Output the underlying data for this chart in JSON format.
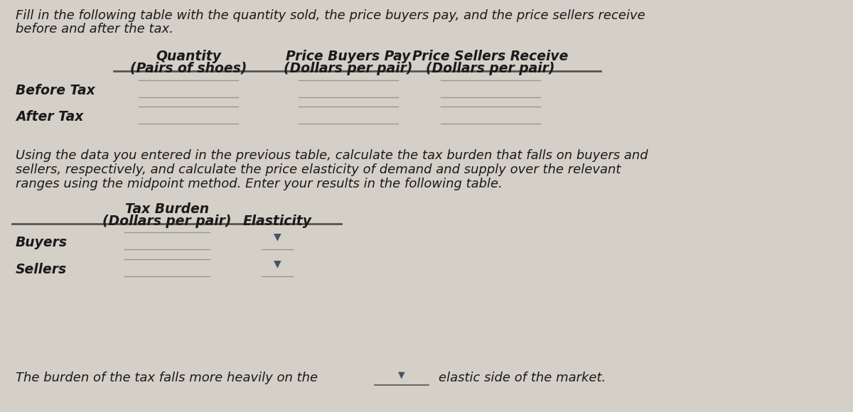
{
  "bg_color": "#d4cfc7",
  "cell_bg": "#ccc8bf",
  "title_text1": "Fill in the following table with the quantity sold, the price buyers pay, and the price sellers receive",
  "title_text2": "before and after the tax.",
  "table1_col_headers_line1": [
    "Quantity",
    "Price Buyers Pay",
    "Price Sellers Receive"
  ],
  "table1_col_headers_line2": [
    "(Pairs of shoes)",
    "(Dollars per pair)",
    "(Dollars per pair)"
  ],
  "table1_rows": [
    "Before Tax",
    "After Tax"
  ],
  "table2_col_headers_line1": [
    "Tax Burden",
    ""
  ],
  "table2_col_headers_line2": [
    "(Dollars per pair)",
    "Elasticity"
  ],
  "table2_rows": [
    "Buyers",
    "Sellers"
  ],
  "paragraph_lines": [
    "Using the data you entered in the previous table, calculate the tax burden that falls on buyers and",
    "sellers, respectively, and calculate the price elasticity of demand and supply over the relevant",
    "ranges using the midpoint method. Enter your results in the following table."
  ],
  "footer": "The burden of the tax falls more heavily on the",
  "footer_end": "elastic side of the market.",
  "font_size_body": 13.0,
  "font_size_header": 13.5,
  "text_color": "#1a1a1a",
  "line_color": "#555550",
  "input_line_color": "#999990"
}
